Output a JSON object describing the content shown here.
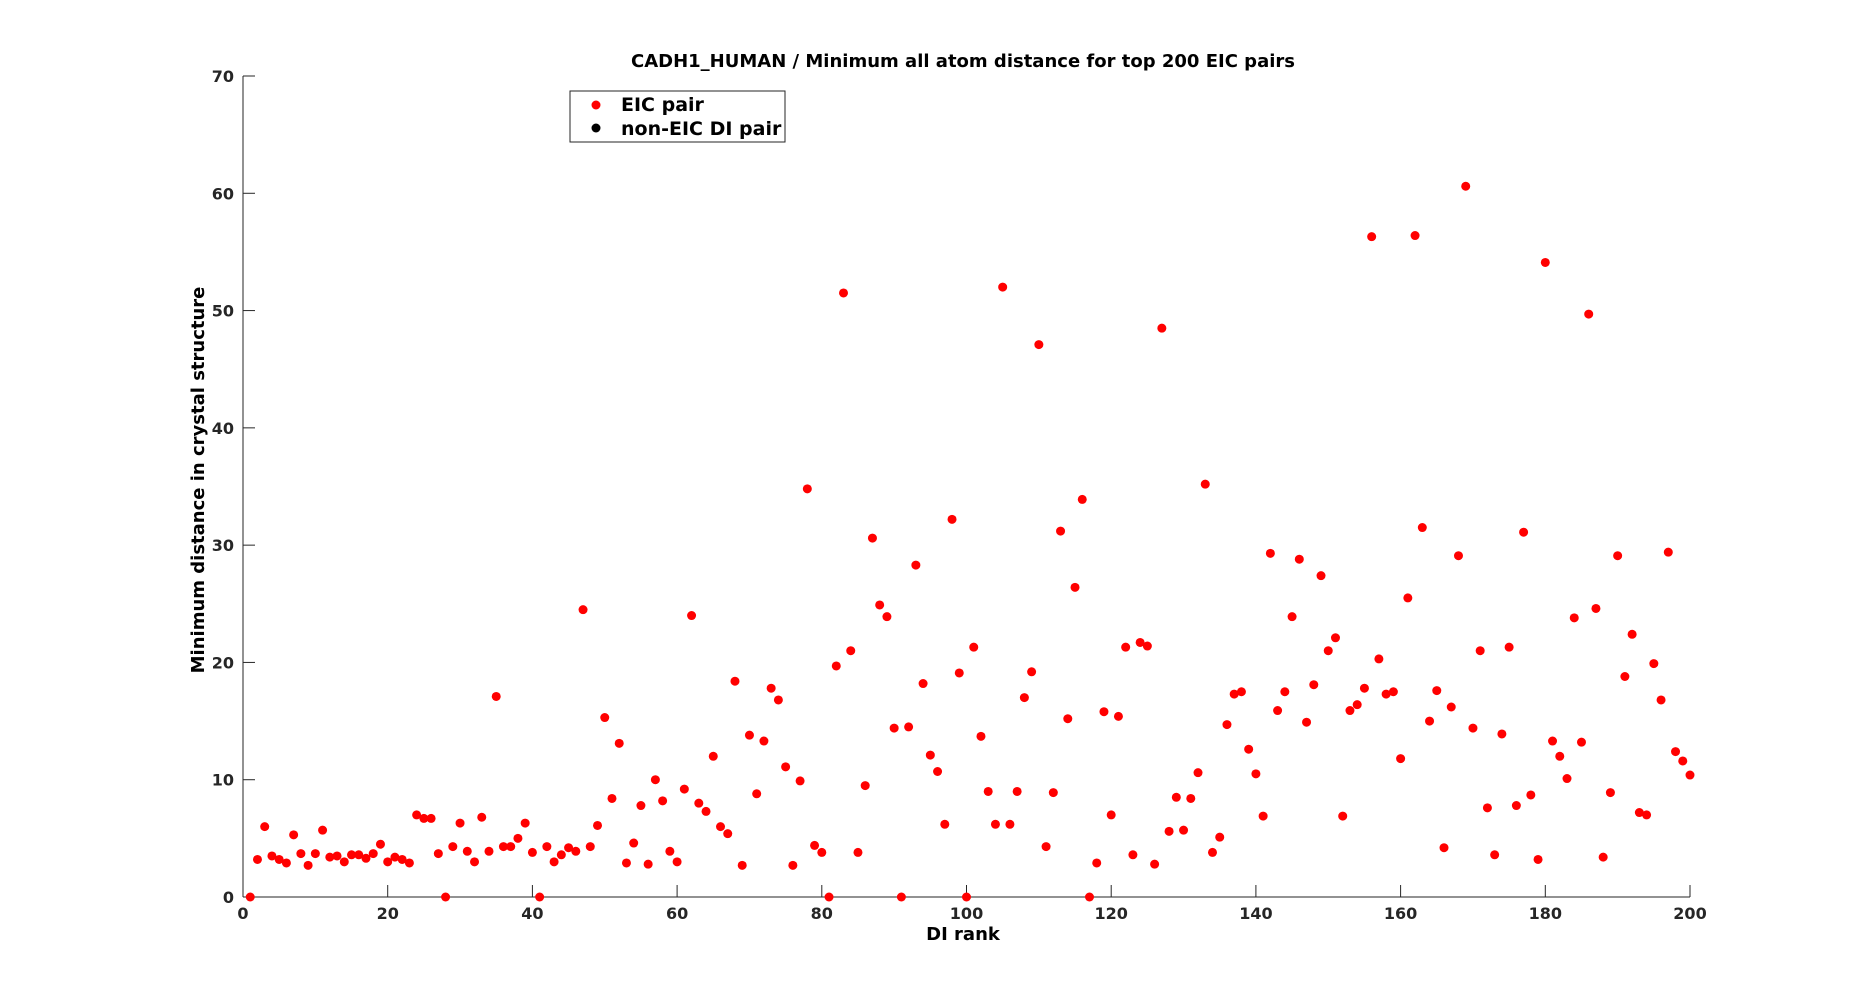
{
  "chart_data": {
    "type": "scatter",
    "title": "CADH1_HUMAN /  Minimum all atom distance for top 200 EIC pairs",
    "xlabel": "DI rank",
    "ylabel": "Minimum distance in crystal structure",
    "xlim": [
      0,
      200
    ],
    "ylim": [
      0,
      70
    ],
    "xticks": [
      0,
      20,
      40,
      60,
      80,
      100,
      120,
      140,
      160,
      180,
      200
    ],
    "yticks": [
      0,
      10,
      20,
      30,
      40,
      50,
      60,
      70
    ],
    "grid": false,
    "legend_position": "top-left",
    "series": [
      {
        "name": "EIC pair",
        "color": "#ff0000",
        "x": [
          1,
          2,
          3,
          4,
          5,
          6,
          7,
          8,
          9,
          10,
          11,
          12,
          13,
          14,
          15,
          16,
          17,
          18,
          19,
          20,
          21,
          22,
          23,
          24,
          25,
          26,
          27,
          28,
          29,
          30,
          31,
          32,
          33,
          34,
          35,
          36,
          37,
          38,
          39,
          40,
          41,
          42,
          43,
          44,
          45,
          46,
          47,
          48,
          49,
          50,
          51,
          52,
          53,
          54,
          55,
          56,
          57,
          58,
          59,
          60,
          61,
          62,
          63,
          64,
          65,
          66,
          67,
          68,
          69,
          70,
          71,
          72,
          73,
          74,
          75,
          76,
          77,
          78,
          79,
          80,
          81,
          82,
          83,
          84,
          85,
          86,
          87,
          88,
          89,
          90,
          91,
          92,
          93,
          94,
          95,
          96,
          97,
          98,
          99,
          100,
          101,
          102,
          103,
          104,
          105,
          106,
          107,
          108,
          109,
          110,
          111,
          112,
          113,
          114,
          115,
          116,
          117,
          118,
          119,
          120,
          121,
          122,
          123,
          124,
          125,
          126,
          127,
          128,
          129,
          130,
          131,
          132,
          133,
          134,
          135,
          136,
          137,
          138,
          139,
          140,
          141,
          142,
          143,
          144,
          145,
          146,
          147,
          148,
          149,
          150,
          151,
          152,
          153,
          154,
          155,
          156,
          157,
          158,
          159,
          160,
          161,
          162,
          163,
          164,
          165,
          166,
          167,
          168,
          169,
          170,
          171,
          172,
          173,
          174,
          175,
          176,
          177,
          178,
          179,
          180,
          181,
          182,
          183,
          184,
          185,
          186,
          187,
          188,
          189,
          190,
          191,
          192,
          193,
          194,
          195,
          196,
          197,
          198,
          199,
          200
        ],
        "y": [
          0,
          3.2,
          6.0,
          3.5,
          3.2,
          2.9,
          5.3,
          3.7,
          2.7,
          3.7,
          5.7,
          3.4,
          3.5,
          3.0,
          3.6,
          3.6,
          3.3,
          3.7,
          4.5,
          3.0,
          3.4,
          3.2,
          2.9,
          7.0,
          6.7,
          6.7,
          3.7,
          0,
          4.3,
          6.3,
          3.9,
          3.0,
          6.8,
          3.9,
          17.1,
          4.3,
          4.3,
          5.0,
          6.3,
          3.8,
          0,
          4.3,
          3.0,
          3.6,
          4.2,
          3.9,
          24.5,
          4.3,
          6.1,
          15.3,
          8.4,
          13.1,
          2.9,
          4.6,
          7.8,
          2.8,
          10.0,
          8.2,
          3.9,
          3.0,
          9.2,
          24.0,
          8.0,
          7.3,
          12.0,
          6.0,
          5.4,
          18.4,
          2.7,
          13.8,
          8.8,
          13.3,
          17.8,
          16.8,
          11.1,
          2.7,
          9.9,
          34.8,
          4.4,
          3.8,
          0,
          19.7,
          51.5,
          21.0,
          3.8,
          9.5,
          30.6,
          24.9,
          23.9,
          14.4,
          0,
          14.5,
          28.3,
          18.2,
          12.1,
          10.7,
          6.2,
          32.2,
          19.1,
          0,
          21.3,
          13.7,
          9.0,
          6.2,
          52.0,
          6.2,
          9.0,
          17.0,
          19.2,
          47.1,
          4.3,
          8.9,
          31.2,
          15.2,
          26.4,
          33.9,
          0,
          2.9,
          15.8,
          7.0,
          15.4,
          21.3,
          3.6,
          21.7,
          21.4,
          2.8,
          48.5,
          5.6,
          8.5,
          5.7,
          8.4,
          10.6,
          35.2,
          3.8,
          5.1,
          14.7,
          17.3,
          17.5,
          12.6,
          10.5,
          6.9,
          29.3,
          15.9,
          17.5,
          23.9,
          28.8,
          14.9,
          18.1,
          27.4,
          21.0,
          22.1,
          6.9,
          15.9,
          16.4,
          17.8,
          56.3,
          20.3,
          17.3,
          17.5,
          11.8,
          25.5,
          56.4,
          31.5,
          15.0,
          17.6,
          4.2,
          16.2,
          29.1,
          60.6,
          14.4,
          21.0,
          7.6,
          3.6,
          13.9,
          21.3,
          7.8,
          31.1,
          8.7,
          3.2,
          54.1,
          13.3,
          12.0,
          10.1,
          23.8,
          13.2,
          49.7,
          24.6,
          3.4,
          8.9,
          29.1,
          18.8,
          22.4,
          7.2,
          7.0,
          19.9,
          16.8,
          29.4,
          12.4,
          11.6,
          10.4
        ]
      },
      {
        "name": "non-EIC DI pair",
        "color": "#000000",
        "x": [],
        "y": []
      }
    ]
  }
}
